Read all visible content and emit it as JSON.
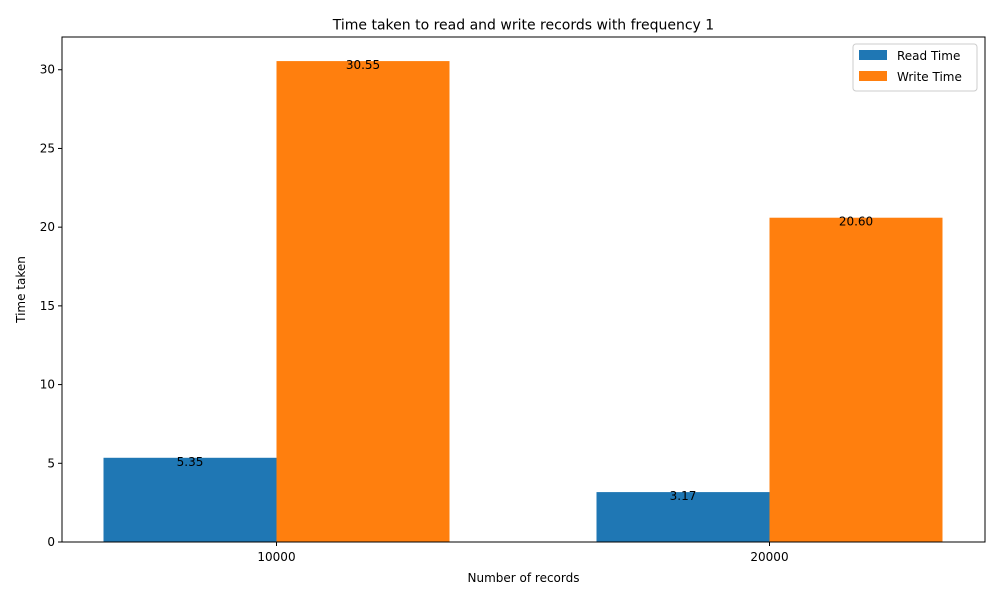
{
  "chart_data": {
    "type": "bar",
    "title": "Time taken to read and write records with frequency 1",
    "xlabel": "Number of records",
    "ylabel": "Time taken",
    "categories": [
      "10000",
      "20000"
    ],
    "series": [
      {
        "name": "Read Time",
        "values": [
          5.35,
          3.17
        ],
        "labels": [
          "5.35",
          "3.17"
        ],
        "color": "#1f77b4"
      },
      {
        "name": "Write Time",
        "values": [
          30.55,
          20.6
        ],
        "labels": [
          "30.55",
          "20.60"
        ],
        "color": "#ff7f0e"
      }
    ],
    "ylim": [
      0,
      32.08
    ],
    "yticks": [
      0,
      5,
      10,
      15,
      20,
      25,
      30
    ],
    "legend": "top-right",
    "grid": false
  }
}
